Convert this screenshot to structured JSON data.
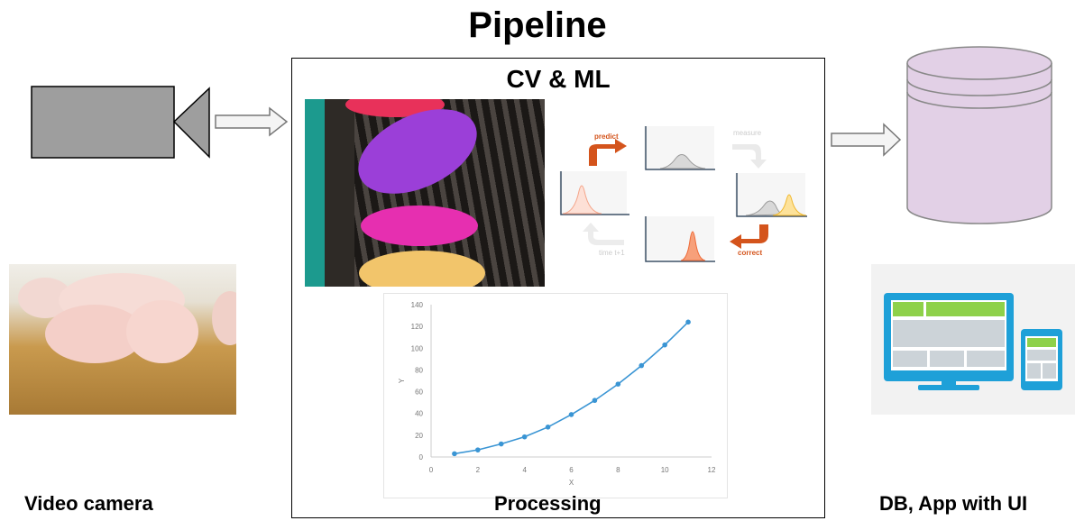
{
  "title": "Pipeline",
  "labels": {
    "camera": "Video camera",
    "processing": "Processing",
    "db": "DB, App with UI"
  },
  "processing": {
    "heading": "CV & ML",
    "kalman": {
      "predict": "predict",
      "measure": "measure",
      "correct": "correct",
      "time": "time t+1"
    }
  },
  "colors": {
    "camera": "#9e9e9e",
    "db": "#e2d0e6",
    "accent": "#d4541c",
    "line": "#3a95d4"
  },
  "chart_data": {
    "type": "line",
    "title": "",
    "xlabel": "X",
    "ylabel": "Y",
    "x": [
      1,
      2,
      3,
      4,
      5,
      6,
      7,
      8,
      9,
      10,
      11
    ],
    "y": [
      3,
      6.5,
      12,
      18.5,
      27.5,
      39,
      52,
      67,
      84,
      103,
      124
    ],
    "xlim": [
      0,
      12
    ],
    "ylim": [
      0,
      140
    ],
    "xticks": [
      "0",
      "2",
      "4",
      "6",
      "8",
      "10",
      "12"
    ],
    "yticks": [
      "0",
      "20",
      "40",
      "60",
      "80",
      "100",
      "120",
      "140"
    ],
    "grid": false
  }
}
